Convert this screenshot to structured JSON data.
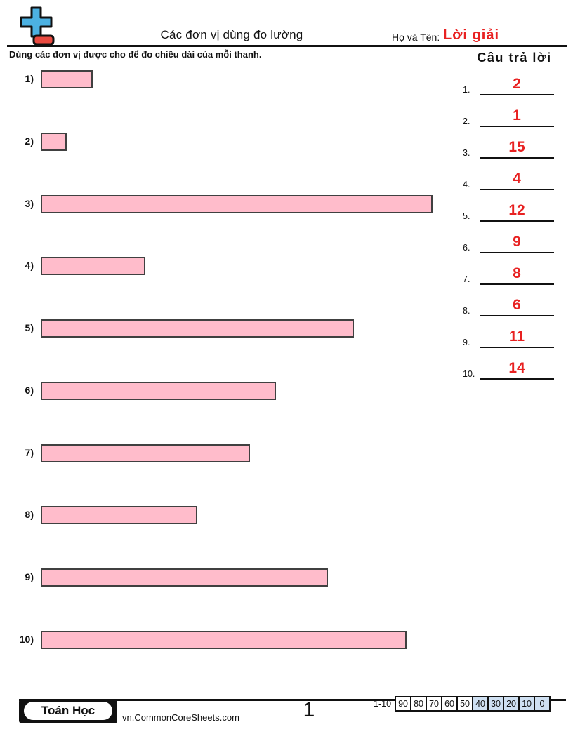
{
  "header": {
    "title": "Các đơn vị dùng đo lường",
    "name_label": "Họ và Tên:",
    "name_value": "Lời giải"
  },
  "instruction": "Dùng các đơn vị được cho để đo chiều dài của mỗi thanh.",
  "answer_panel": {
    "title": "Câu trả lời",
    "answers": [
      {
        "num": "1.",
        "value": "2"
      },
      {
        "num": "2.",
        "value": "1"
      },
      {
        "num": "3.",
        "value": "15"
      },
      {
        "num": "4.",
        "value": "4"
      },
      {
        "num": "5.",
        "value": "12"
      },
      {
        "num": "6.",
        "value": "9"
      },
      {
        "num": "7.",
        "value": "8"
      },
      {
        "num": "8.",
        "value": "6"
      },
      {
        "num": "9.",
        "value": "11"
      },
      {
        "num": "10.",
        "value": "14"
      }
    ]
  },
  "problems": [
    {
      "label": "1)",
      "units": 2
    },
    {
      "label": "2)",
      "units": 1
    },
    {
      "label": "3)",
      "units": 15
    },
    {
      "label": "4)",
      "units": 4
    },
    {
      "label": "5)",
      "units": 12
    },
    {
      "label": "6)",
      "units": 9
    },
    {
      "label": "7)",
      "units": 8
    },
    {
      "label": "8)",
      "units": 6
    },
    {
      "label": "9)",
      "units": 11
    },
    {
      "label": "10)",
      "units": 14
    }
  ],
  "footer": {
    "subject": "Toán Học",
    "site": "vn.CommonCoreSheets.com",
    "page": "1",
    "score_label": "1-10",
    "scores": [
      "90",
      "80",
      "70",
      "60",
      "50",
      "40",
      "30",
      "20",
      "10",
      "0"
    ]
  },
  "colors": {
    "bar_fill": "#ffbccb",
    "bar_border": "#404040",
    "answer_red": "#e82121",
    "logo_blue": "#4cb1e2",
    "logo_red": "#e94a40",
    "score_blue": "#cfe0f2"
  }
}
